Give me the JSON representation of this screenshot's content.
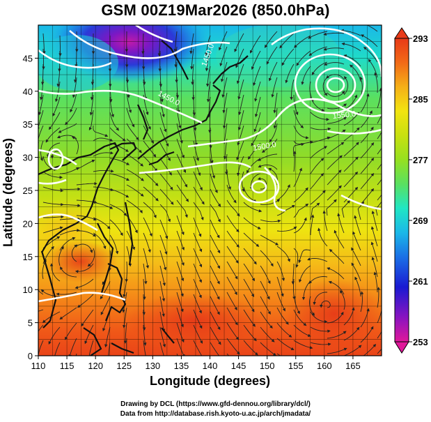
{
  "title": "GSM 00Z19Mar2026 (850.0hPa)",
  "xlabel": "Longitude (degrees)",
  "ylabel": "Latitude  (degrees)",
  "credits": {
    "line1": "Drawing by DCL (https://www.gfd-dennou.org/library/dcl/)",
    "line2": "Data from http://database.rish.kyoto-u.ac.jp/arch/jmadata/"
  },
  "map": {
    "xlim": [
      110,
      170
    ],
    "ylim": [
      0,
      50
    ],
    "x_ticks": [
      110,
      115,
      120,
      125,
      130,
      135,
      140,
      145,
      150,
      155,
      160,
      165
    ],
    "y_ticks": [
      0,
      5,
      10,
      15,
      20,
      25,
      30,
      35,
      40,
      45
    ],
    "x_tick_labels": [
      "110",
      "115",
      "120",
      "125",
      "130",
      "135",
      "140",
      "145",
      "150",
      "155",
      "160",
      "165"
    ],
    "y_tick_labels": [
      "0",
      "5",
      "10",
      "15",
      "20",
      "25",
      "30",
      "35",
      "40",
      "45"
    ],
    "contour_labels": [
      "1450.0",
      "1500.0",
      "1450.0",
      "1550.0"
    ],
    "colors": {
      "contour": "#ffffff",
      "coast": "#111111",
      "streamline": "#222222"
    }
  },
  "colorbar": {
    "labels": [
      "293",
      "285",
      "277",
      "269",
      "261",
      "253"
    ],
    "values": [
      293,
      285,
      277,
      269,
      261,
      253
    ],
    "range": [
      253,
      293
    ],
    "colors": [
      "#e0189a",
      "#8a14c0",
      "#1a1ad2",
      "#1a70e6",
      "#1ab8e8",
      "#20e6c4",
      "#5ae060",
      "#96e020",
      "#c8e010",
      "#f2e410",
      "#f5b018",
      "#f26a18",
      "#e83a18"
    ]
  }
}
